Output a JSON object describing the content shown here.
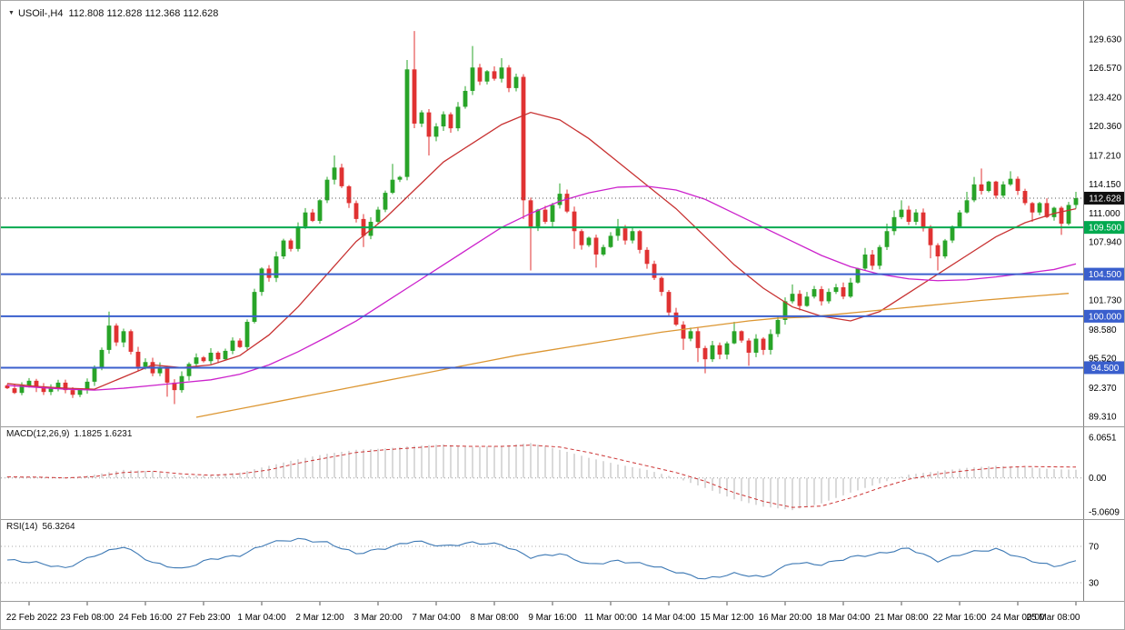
{
  "title": {
    "symbol_period": "USOil-,H4",
    "ohlc_text": "112.808 112.828 112.368 112.628"
  },
  "icons": {
    "title_dropdown": "▼"
  },
  "indicators": {
    "macd": {
      "name": "MACD(12,26,9)",
      "values_text": "1.1825 1.6231"
    },
    "rsi": {
      "name": "RSI(14)",
      "value_text": "56.3264"
    }
  },
  "chart_data": {
    "type": "candlestick",
    "symbol": "USOil-",
    "timeframe": "H4",
    "ohlc_display": {
      "open": "112.808",
      "high": "112.828",
      "low": "112.368",
      "close": "112.628"
    },
    "current_price": 112.628,
    "price_axis_labels": [
      "129.630",
      "126.570",
      "123.420",
      "120.360",
      "117.210",
      "114.150",
      "111.000",
      "107.940",
      "101.730",
      "98.580",
      "95.520",
      "92.370",
      "89.310"
    ],
    "badges": [
      {
        "label": "112.628",
        "price": 112.628,
        "bg": "#101010"
      },
      {
        "label": "109.500",
        "price": 109.5,
        "bg": "#00a94f"
      },
      {
        "label": "104.500",
        "price": 104.5,
        "bg": "#3a5fcd"
      },
      {
        "label": "100.000",
        "price": 100.0,
        "bg": "#3a5fcd"
      },
      {
        "label": "94.500",
        "price": 94.5,
        "bg": "#3a5fcd"
      }
    ],
    "level_lines": [
      {
        "price": 109.5,
        "label": "109.500",
        "color": "#00a94f"
      },
      {
        "price": 104.5,
        "label": "104.500",
        "color": "#3a5fcd"
      },
      {
        "price": 100.0,
        "label": "100.000",
        "color": "#3a5fcd"
      },
      {
        "price": 94.5,
        "label": "94.500",
        "color": "#3a5fcd"
      }
    ],
    "x_labels": [
      {
        "i": 3,
        "label": "22 Feb 2022"
      },
      {
        "i": 11,
        "label": "23 Feb 08:00"
      },
      {
        "i": 19,
        "label": "24 Feb 16:00"
      },
      {
        "i": 27,
        "label": "27 Feb 23:00"
      },
      {
        "i": 35,
        "label": "1 Mar 04:00"
      },
      {
        "i": 43,
        "label": "2 Mar 12:00"
      },
      {
        "i": 51,
        "label": "3 Mar 20:00"
      },
      {
        "i": 59,
        "label": "7 Mar 04:00"
      },
      {
        "i": 67,
        "label": "8 Mar 08:00"
      },
      {
        "i": 75,
        "label": "9 Mar 16:00"
      },
      {
        "i": 83,
        "label": "11 Mar 00:00"
      },
      {
        "i": 91,
        "label": "14 Mar 04:00"
      },
      {
        "i": 99,
        "label": "15 Mar 12:00"
      },
      {
        "i": 107,
        "label": "16 Mar 20:00"
      },
      {
        "i": 115,
        "label": "18 Mar 04:00"
      },
      {
        "i": 123,
        "label": "21 Mar 08:00"
      },
      {
        "i": 131,
        "label": "22 Mar 16:00"
      },
      {
        "i": 139,
        "label": "24 Mar 00:00"
      },
      {
        "i": 147,
        "label": "25 Mar 08:00"
      }
    ],
    "candles": {
      "first_open": 92.6,
      "closes": [
        92.3,
        91.8,
        92.6,
        93.1,
        92.4,
        91.9,
        92.3,
        92.9,
        92.1,
        91.6,
        92.2,
        93.0,
        94.4,
        96.4,
        99.0,
        97.2,
        98.4,
        96.2,
        94.6,
        95.1,
        93.9,
        94.6,
        92.9,
        92.1,
        93.6,
        94.9,
        95.6,
        95.2,
        96.1,
        95.4,
        96.3,
        97.4,
        96.7,
        99.4,
        102.6,
        105.1,
        104.1,
        106.4,
        108.1,
        107.2,
        109.6,
        111.1,
        110.2,
        112.4,
        114.6,
        115.9,
        113.9,
        112.1,
        110.4,
        108.6,
        110.1,
        111.4,
        113.2,
        114.6,
        114.9,
        126.4,
        120.6,
        121.8,
        119.2,
        120.3,
        121.6,
        120.1,
        122.4,
        124.1,
        126.6,
        125.1,
        126.2,
        125.4,
        126.6,
        124.4,
        125.6,
        112.4,
        109.6,
        111.4,
        110.1,
        111.9,
        113.1,
        111.2,
        109.1,
        107.6,
        108.4,
        106.6,
        107.4,
        108.6,
        109.4,
        108.1,
        109.1,
        107.1,
        105.6,
        104.1,
        102.6,
        100.4,
        99.1,
        97.6,
        98.4,
        96.6,
        95.4,
        96.9,
        95.9,
        97.1,
        98.4,
        97.4,
        96.1,
        97.6,
        96.4,
        98.1,
        99.6,
        101.6,
        102.4,
        101.1,
        102.1,
        102.9,
        101.6,
        102.6,
        103.1,
        102.1,
        103.6,
        105.1,
        106.6,
        105.4,
        107.4,
        109.1,
        110.6,
        111.4,
        110.1,
        111.1,
        109.4,
        107.6,
        106.4,
        108.1,
        109.6,
        111.1,
        112.4,
        114.1,
        113.4,
        114.4,
        112.9,
        114.1,
        114.7,
        113.4,
        112.1,
        111.1,
        112.1,
        110.6,
        111.6,
        109.9,
        111.9,
        112.628
      ],
      "high_overrides": {
        "14": 100.5,
        "45": 117.2,
        "53": 116.3,
        "55": 127.4,
        "56": 130.5,
        "64": 128.9,
        "68": 127.6,
        "76": 114.2,
        "84": 110.4,
        "100": 99.4,
        "108": 103.4,
        "118": 107.3,
        "121": 109.9,
        "122": 111.3,
        "123": 112.4,
        "132": 113.3,
        "133": 114.9,
        "134": 115.8,
        "138": 115.5,
        "147": 113.3
      },
      "low_overrides": {
        "22": 91.4,
        "23": 90.6,
        "49": 107.4,
        "58": 117.2,
        "71": 110.4,
        "72": 104.9,
        "78": 107.2,
        "81": 105.2,
        "93": 96.4,
        "95": 95.1,
        "96": 93.9,
        "102": 94.7,
        "127": 106.2,
        "128": 104.9,
        "141": 110.1,
        "145": 108.7
      }
    },
    "ma": {
      "fast": {
        "start": 0,
        "step": 4,
        "values": [
          92.8,
          92.5,
          92.3,
          92.2,
          93.5,
          94.8,
          94.5,
          94.8,
          95.8,
          98.0,
          101.0,
          104.5,
          108.0,
          110.5,
          113.5,
          116.5,
          118.5,
          120.5,
          121.8,
          121.0,
          119.0,
          116.5,
          114.0,
          111.5,
          108.5,
          105.5,
          103.0,
          101.0,
          100.0,
          99.5,
          100.5,
          102.5,
          104.5,
          106.5,
          108.5,
          110.0,
          111.0,
          111.5
        ]
      },
      "mid": {
        "start": 0,
        "step": 4,
        "values": [
          92.6,
          92.4,
          92.2,
          92.1,
          92.3,
          92.6,
          92.9,
          93.2,
          93.8,
          94.8,
          96.2,
          97.8,
          99.5,
          101.5,
          103.5,
          105.5,
          107.5,
          109.5,
          111.0,
          112.3,
          113.2,
          113.8,
          113.9,
          113.5,
          112.5,
          111.0,
          109.5,
          108.0,
          106.5,
          105.3,
          104.5,
          104.0,
          103.8,
          103.9,
          104.2,
          104.6,
          105.0,
          105.6
        ]
      },
      "long": {
        "start": 26,
        "step": 4,
        "values": [
          89.2,
          89.8,
          90.4,
          91.0,
          91.6,
          92.2,
          92.8,
          93.4,
          94.0,
          94.6,
          95.2,
          95.8,
          96.3,
          96.8,
          97.3,
          97.8,
          98.3,
          98.7,
          99.1,
          99.5,
          99.8,
          99.9,
          100.2,
          100.5,
          100.8,
          101.1,
          101.4,
          101.7,
          101.95,
          102.2,
          102.45
        ]
      }
    },
    "macd": {
      "step": 4,
      "main": [
        0.2,
        0.1,
        -0.1,
        0.5,
        1.2,
        1.0,
        0.3,
        0.4,
        0.8,
        1.8,
        2.8,
        3.6,
        4.2,
        4.4,
        4.8,
        5.0,
        4.6,
        4.8,
        5.2,
        4.2,
        3.0,
        2.0,
        1.2,
        0.0,
        -1.5,
        -3.2,
        -4.3,
        -4.8,
        -3.8,
        -2.2,
        -0.8,
        0.5,
        1.0,
        1.5,
        1.8,
        1.6,
        1.3,
        1.18
      ],
      "signal": [
        0.15,
        0.12,
        0.0,
        0.2,
        0.8,
        1.0,
        0.6,
        0.4,
        0.6,
        1.2,
        2.2,
        3.0,
        3.8,
        4.2,
        4.5,
        4.8,
        4.7,
        4.7,
        4.9,
        4.6,
        3.8,
        2.8,
        1.8,
        0.8,
        -0.5,
        -2.2,
        -3.5,
        -4.4,
        -4.2,
        -3.0,
        -1.5,
        -0.2,
        0.6,
        1.1,
        1.5,
        1.7,
        1.65,
        1.62
      ],
      "axis": [
        {
          "label": "6.0651",
          "value": 6.0651
        },
        {
          "label": "0.00",
          "value": 0
        },
        {
          "label": "-5.0609",
          "value": -5.0609
        }
      ],
      "current_values": [
        1.1825,
        1.6231
      ]
    },
    "rsi": {
      "step": 4,
      "values": [
        55,
        52,
        46,
        60,
        70,
        52,
        45,
        56,
        60,
        74,
        78,
        74,
        62,
        68,
        76,
        70,
        74,
        72,
        58,
        62,
        50,
        54,
        50,
        42,
        34,
        40,
        36,
        52,
        50,
        58,
        62,
        68,
        54,
        63,
        67,
        56,
        48,
        56.3
      ],
      "levels": [
        {
          "label": "70",
          "value": 70
        },
        {
          "label": "30",
          "value": 30
        }
      ],
      "current_value": 56.3264
    },
    "colors": {
      "up": "#28a428",
      "down": "#e03232",
      "ma_fast": "#c83232",
      "ma_mid": "#cc22cc",
      "ma_long": "#dc9632",
      "level_green": "#00a94f",
      "level_blue": "#3a5fcd",
      "macd_hist": "#b4b4b4",
      "macd_signal": "#cc3333",
      "rsi_line": "#3c78b4",
      "badge_current_bg": "#101010",
      "axis_text": "#000000"
    }
  }
}
